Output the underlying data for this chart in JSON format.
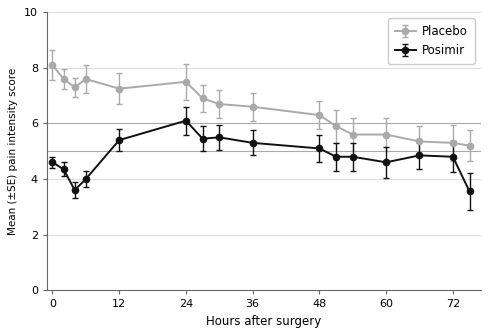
{
  "placebo_x": [
    0,
    2,
    4,
    6,
    12,
    24,
    27,
    30,
    36,
    48,
    51,
    54,
    60,
    66,
    72,
    75
  ],
  "placebo_y": [
    8.1,
    7.6,
    7.3,
    7.6,
    7.25,
    7.5,
    6.9,
    6.7,
    6.6,
    6.3,
    5.9,
    5.6,
    5.6,
    5.35,
    5.3,
    5.2
  ],
  "placebo_err": [
    0.55,
    0.35,
    0.35,
    0.5,
    0.55,
    0.65,
    0.5,
    0.5,
    0.5,
    0.5,
    0.6,
    0.6,
    0.6,
    0.55,
    0.65,
    0.55
  ],
  "posimir_x": [
    0,
    2,
    4,
    6,
    12,
    24,
    27,
    30,
    36,
    48,
    51,
    54,
    60,
    66,
    72,
    75
  ],
  "posimir_y": [
    4.6,
    4.35,
    3.6,
    4.0,
    5.4,
    6.1,
    5.45,
    5.5,
    5.3,
    5.1,
    4.8,
    4.8,
    4.6,
    4.85,
    4.8,
    3.55
  ],
  "posimir_err": [
    0.2,
    0.25,
    0.3,
    0.3,
    0.4,
    0.5,
    0.45,
    0.45,
    0.45,
    0.5,
    0.5,
    0.5,
    0.55,
    0.5,
    0.55,
    0.65
  ],
  "placebo_color": "#aaaaaa",
  "posimir_color": "#111111",
  "hline_y": [
    5.0,
    6.0
  ],
  "hline_color": "#aaaaaa",
  "xlabel": "Hours after surgery",
  "ylabel": "Mean (±SE) pain intensity score",
  "ylim": [
    0,
    10
  ],
  "xlim": [
    -1,
    77
  ],
  "xticks": [
    0,
    12,
    24,
    36,
    48,
    60,
    72
  ],
  "yticks": [
    0,
    2,
    4,
    6,
    8,
    10
  ],
  "legend_labels": [
    "Placebo",
    "Posimir"
  ],
  "background_color": "#ffffff",
  "grid_color": "#d8d8d8"
}
